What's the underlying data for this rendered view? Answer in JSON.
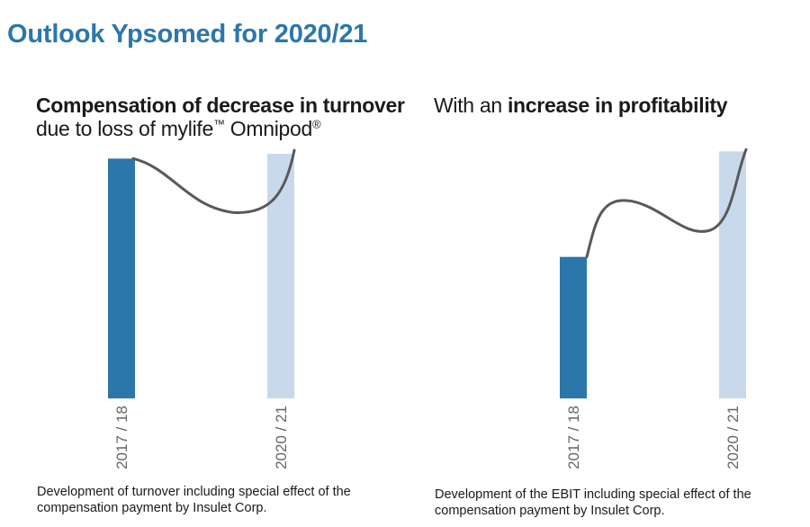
{
  "page": {
    "title": "Outlook Ypsomed for 2020/21"
  },
  "left_panel": {
    "heading_bold": "Compensation of decrease in turnover",
    "heading_line2": "due to loss of mylife",
    "heading_tm": "™",
    "heading_product": " Omnipod",
    "heading_reg": "®",
    "caption_line1": "Development of turnover including special effect of the",
    "caption_line2": "compensation payment by Insulet Corp."
  },
  "right_panel": {
    "heading_normal": "With an ",
    "heading_bold": "increase in profitability",
    "caption_line1": "Development of the EBIT including special effect of the",
    "caption_line2": "compensation payment by Insulet Corp."
  },
  "chart_data": [
    {
      "type": "bar",
      "categories": [
        "2017 / 18",
        "2020 / 21"
      ],
      "values": [
        100,
        102
      ],
      "ylim": [
        0,
        105
      ],
      "colors": [
        "#2c77aa",
        "#c9d9ec"
      ],
      "trend_curve": "dips between the two bars and rises to the second bar",
      "trend_color": "#595959",
      "grid": false,
      "legend": "none"
    },
    {
      "type": "bar",
      "categories": [
        "2017 / 18",
        "2020 / 21"
      ],
      "values": [
        59,
        103
      ],
      "ylim": [
        0,
        105
      ],
      "colors": [
        "#2c77aa",
        "#c9d9ec"
      ],
      "trend_curve": "rises, dips between the two bars and rises to the second bar",
      "trend_color": "#595959",
      "grid": false,
      "legend": "none"
    }
  ]
}
